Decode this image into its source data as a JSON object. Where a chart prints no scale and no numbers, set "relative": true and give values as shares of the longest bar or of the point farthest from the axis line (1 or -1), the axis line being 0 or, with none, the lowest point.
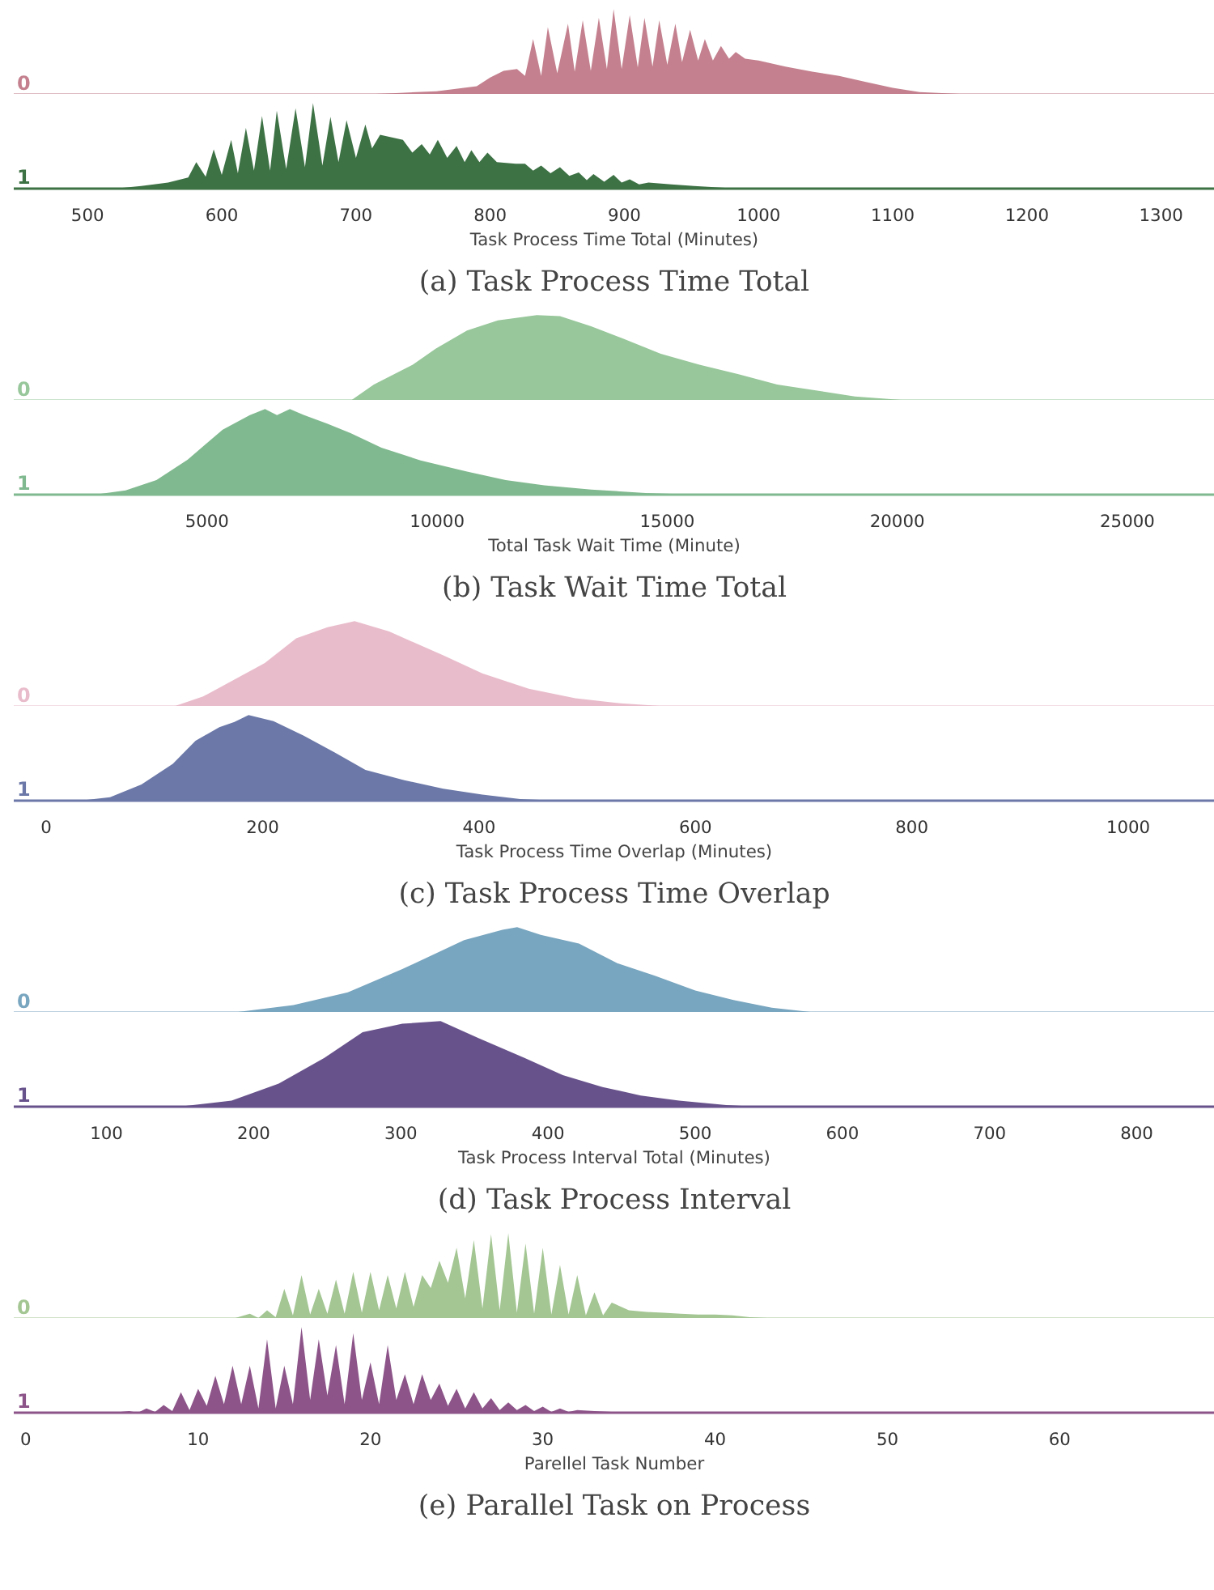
{
  "chart_data": [
    {
      "type": "area",
      "relative": true,
      "xlim": [
        445,
        1340
      ],
      "tick_labels": false,
      "series": [
        {
          "name": "0",
          "color": "#c4808e",
          "x": [
            445,
            700,
            730,
            760,
            790,
            800,
            810,
            820,
            826,
            832,
            838,
            843,
            850,
            858,
            863,
            869,
            875,
            881,
            887,
            892,
            898,
            904,
            910,
            915,
            921,
            926,
            932,
            938,
            943,
            949,
            955,
            960,
            966,
            972,
            978,
            983,
            990,
            1000,
            1020,
            1040,
            1060,
            1080,
            1100,
            1120,
            1150,
            1200,
            1340
          ],
          "values": [
            0,
            0,
            0.02,
            0.04,
            0.1,
            0.2,
            0.28,
            0.3,
            0.22,
            0.65,
            0.22,
            0.79,
            0.25,
            0.83,
            0.27,
            0.87,
            0.28,
            0.9,
            0.3,
            1.0,
            0.3,
            0.93,
            0.32,
            0.9,
            0.33,
            0.87,
            0.35,
            0.83,
            0.38,
            0.76,
            0.4,
            0.65,
            0.4,
            0.57,
            0.42,
            0.5,
            0.42,
            0.4,
            0.33,
            0.27,
            0.22,
            0.15,
            0.08,
            0.03,
            0.01,
            0,
            0
          ]
        }
      ]
    },
    {
      "type": "area",
      "relative": true,
      "title": "(a) Task Process Time Total",
      "xlabel": "Task Process Time Total (Minutes)",
      "xlim": [
        445,
        1340
      ],
      "xticks": [
        500,
        600,
        700,
        800,
        900,
        1000,
        1100,
        1200,
        1300
      ],
      "tick_labels": "x",
      "series": [
        {
          "name": "1",
          "color": "#3d7245",
          "x": [
            445,
            520,
            540,
            560,
            575,
            581,
            588,
            594,
            600,
            607,
            612,
            618,
            624,
            630,
            636,
            641,
            648,
            655,
            662,
            668,
            675,
            681,
            687,
            693,
            700,
            707,
            712,
            718,
            735,
            742,
            749,
            755,
            761,
            768,
            775,
            781,
            786,
            792,
            798,
            805,
            812,
            819,
            826,
            832,
            838,
            845,
            852,
            859,
            866,
            872,
            877,
            885,
            892,
            898,
            904,
            911,
            918,
            935,
            952,
            975,
            990,
            1340
          ],
          "values": [
            0,
            0,
            0.03,
            0.07,
            0.13,
            0.31,
            0.14,
            0.46,
            0.16,
            0.57,
            0.18,
            0.71,
            0.21,
            0.85,
            0.21,
            0.91,
            0.23,
            0.94,
            0.25,
            1.0,
            0.27,
            0.84,
            0.31,
            0.8,
            0.36,
            0.75,
            0.47,
            0.63,
            0.57,
            0.42,
            0.52,
            0.4,
            0.57,
            0.36,
            0.5,
            0.31,
            0.45,
            0.31,
            0.42,
            0.31,
            0.3,
            0.29,
            0.29,
            0.21,
            0.27,
            0.18,
            0.25,
            0.15,
            0.19,
            0.1,
            0.17,
            0.08,
            0.16,
            0.07,
            0.11,
            0.05,
            0.07,
            0.05,
            0.03,
            0.01,
            0,
            0
          ]
        }
      ]
    },
    {
      "type": "area",
      "relative": true,
      "xlim": [
        800,
        26900
      ],
      "tick_labels": false,
      "series": [
        {
          "name": "0",
          "color": "#97c79a",
          "x": [
            800,
            8120,
            8625,
            9470,
            9975,
            10650,
            11320,
            12165,
            12670,
            13345,
            14020,
            14860,
            15700,
            16550,
            17390,
            18230,
            19080,
            20090,
            21600,
            26900
          ],
          "values": [
            0,
            0,
            0.19,
            0.42,
            0.61,
            0.82,
            0.94,
            1.0,
            0.99,
            0.87,
            0.73,
            0.55,
            0.42,
            0.31,
            0.19,
            0.12,
            0.05,
            0.01,
            0,
            0
          ]
        }
      ]
    },
    {
      "type": "area",
      "relative": true,
      "title": "(b) Task Wait Time Total",
      "xlabel": "Total Task Wait Time (Minute)",
      "xlim": [
        800,
        26900
      ],
      "xticks": [
        5000,
        10000,
        15000,
        20000,
        25000
      ],
      "tick_labels": "x",
      "series": [
        {
          "name": "1",
          "color": "#80b98f",
          "x": [
            800,
            2555,
            3230,
            3900,
            4580,
            5340,
            5930,
            6260,
            6520,
            6800,
            7110,
            7610,
            8120,
            8790,
            9640,
            10650,
            11490,
            12330,
            13350,
            14530,
            15700,
            26900
          ],
          "values": [
            0,
            0,
            0.05,
            0.17,
            0.41,
            0.76,
            0.93,
            1.0,
            0.93,
            1.0,
            0.93,
            0.83,
            0.72,
            0.55,
            0.4,
            0.27,
            0.17,
            0.11,
            0.06,
            0.02,
            0,
            0
          ]
        }
      ]
    },
    {
      "type": "area",
      "relative": true,
      "xlim": [
        -30,
        1080
      ],
      "tick_labels": false,
      "series": [
        {
          "name": "0",
          "color": "#e9bccb",
          "x": [
            -30,
            117,
            145,
            202,
            231,
            260,
            285,
            317,
            367,
            403,
            446,
            489,
            531,
            567,
            600,
            1080
          ],
          "values": [
            0,
            0,
            0.12,
            0.51,
            0.8,
            0.93,
            1.0,
            0.88,
            0.6,
            0.39,
            0.21,
            0.1,
            0.04,
            0.01,
            0,
            0
          ]
        }
      ]
    },
    {
      "type": "area",
      "relative": true,
      "title": "(c) Task Process Time Overlap",
      "xlabel": "Task Process Time Overlap (Minutes)",
      "xlim": [
        -30,
        1080
      ],
      "xticks": [
        0,
        200,
        400,
        600,
        800,
        1000
      ],
      "tick_labels": "x",
      "series": [
        {
          "name": "1",
          "color": "#6b78a8",
          "x": [
            -30,
            31,
            59,
            88,
            117,
            138,
            160,
            174,
            187,
            210,
            238,
            267,
            295,
            331,
            367,
            403,
            438,
            474,
            1080
          ],
          "values": [
            0,
            0,
            0.04,
            0.19,
            0.43,
            0.7,
            0.86,
            0.92,
            1.0,
            0.93,
            0.76,
            0.56,
            0.36,
            0.24,
            0.14,
            0.07,
            0.02,
            0,
            0
          ]
        }
      ]
    },
    {
      "type": "area",
      "relative": true,
      "xlim": [
        37,
        853
      ],
      "tick_labels": false,
      "series": [
        {
          "name": "0",
          "color": "#78a5bf",
          "x": [
            37,
            185,
            227,
            264,
            301,
            343,
            369,
            379,
            395,
            421,
            447,
            473,
            500,
            526,
            552,
            583,
            853
          ],
          "values": [
            0,
            0,
            0.09,
            0.24,
            0.51,
            0.85,
            0.97,
            1.0,
            0.91,
            0.81,
            0.58,
            0.43,
            0.26,
            0.15,
            0.06,
            0,
            0
          ]
        }
      ]
    },
    {
      "type": "area",
      "relative": true,
      "title": "(d) Task Process Interval",
      "xlabel": "Task Process Interval Total (Minutes)",
      "xlim": [
        37,
        853
      ],
      "xticks": [
        100,
        200,
        300,
        400,
        500,
        600,
        700,
        800
      ],
      "tick_labels": "x",
      "series": [
        {
          "name": "1",
          "color": "#68528c",
          "x": [
            37,
            149,
            185,
            217,
            248,
            274,
            301,
            327,
            353,
            384,
            410,
            437,
            463,
            489,
            521,
            542,
            853
          ],
          "values": [
            0,
            0,
            0.07,
            0.27,
            0.57,
            0.87,
            0.97,
            1.0,
            0.8,
            0.57,
            0.37,
            0.23,
            0.13,
            0.07,
            0.02,
            0,
            0
          ]
        }
      ]
    },
    {
      "type": "area",
      "relative": true,
      "xlim": [
        -0.7,
        69
      ],
      "tick_labels": false,
      "series": [
        {
          "name": "0",
          "color": "#a3c693",
          "x": [
            -0.7,
            12,
            13,
            13.5,
            14,
            14.5,
            15,
            15.5,
            16,
            16.5,
            17,
            17.5,
            18,
            18.5,
            19,
            19.5,
            20,
            20.5,
            21,
            21.5,
            22,
            22.5,
            23,
            23.5,
            24,
            24.5,
            25,
            25.5,
            26,
            26.5,
            27,
            27.5,
            28,
            28.5,
            29,
            29.5,
            30,
            30.5,
            31,
            31.5,
            32,
            32.5,
            33,
            33.5,
            34,
            35,
            36,
            37,
            38,
            39,
            40,
            41,
            42,
            43,
            44,
            69
          ],
          "values": [
            0,
            0,
            0.06,
            0.01,
            0.1,
            0.02,
            0.35,
            0.04,
            0.51,
            0.05,
            0.35,
            0.06,
            0.46,
            0.06,
            0.55,
            0.07,
            0.55,
            0.1,
            0.51,
            0.12,
            0.55,
            0.14,
            0.51,
            0.36,
            0.68,
            0.42,
            0.83,
            0.24,
            0.92,
            0.12,
            0.99,
            0.1,
            1.0,
            0.07,
            0.88,
            0.06,
            0.83,
            0.05,
            0.63,
            0.05,
            0.51,
            0.04,
            0.31,
            0.04,
            0.19,
            0.1,
            0.08,
            0.07,
            0.06,
            0.05,
            0.05,
            0.04,
            0.02,
            0.01,
            0,
            0
          ]
        }
      ]
    },
    {
      "type": "area",
      "relative": true,
      "title": "(e) Parallel Task on Process",
      "xlabel": "Parellel Task Number",
      "xlim": [
        -0.7,
        69
      ],
      "xticks": [
        0,
        10,
        20,
        30,
        40,
        50,
        60
      ],
      "tick_labels": "x",
      "series": [
        {
          "name": "1",
          "color": "#8c5489",
          "x": [
            -0.7,
            5,
            6,
            6.5,
            7,
            7.5,
            8,
            8.5,
            9,
            9.5,
            10,
            10.5,
            11,
            11.5,
            12,
            12.5,
            13,
            13.5,
            14,
            14.5,
            15,
            15.5,
            16,
            16.5,
            17,
            17.5,
            18,
            18.5,
            19,
            19.5,
            20,
            20.5,
            21,
            21.5,
            22,
            22.5,
            23,
            23.5,
            24,
            24.5,
            25,
            25.5,
            26,
            26.5,
            27,
            27.5,
            28,
            28.5,
            29,
            29.5,
            30,
            30.5,
            31,
            31.5,
            32,
            33,
            34,
            35,
            69
          ],
          "values": [
            0,
            0,
            0.02,
            0,
            0.05,
            0.01,
            0.09,
            0.02,
            0.24,
            0.03,
            0.28,
            0.08,
            0.43,
            0.1,
            0.55,
            0.1,
            0.55,
            0.05,
            0.86,
            0.05,
            0.55,
            0.1,
            1.0,
            0.15,
            0.86,
            0.2,
            0.79,
            0.1,
            0.93,
            0.15,
            0.59,
            0.1,
            0.79,
            0.15,
            0.45,
            0.1,
            0.45,
            0.15,
            0.34,
            0.08,
            0.28,
            0.05,
            0.24,
            0.05,
            0.17,
            0.03,
            0.12,
            0.03,
            0.09,
            0.02,
            0.07,
            0.01,
            0.05,
            0.01,
            0.03,
            0.02,
            0.01,
            0,
            0
          ]
        }
      ]
    }
  ]
}
